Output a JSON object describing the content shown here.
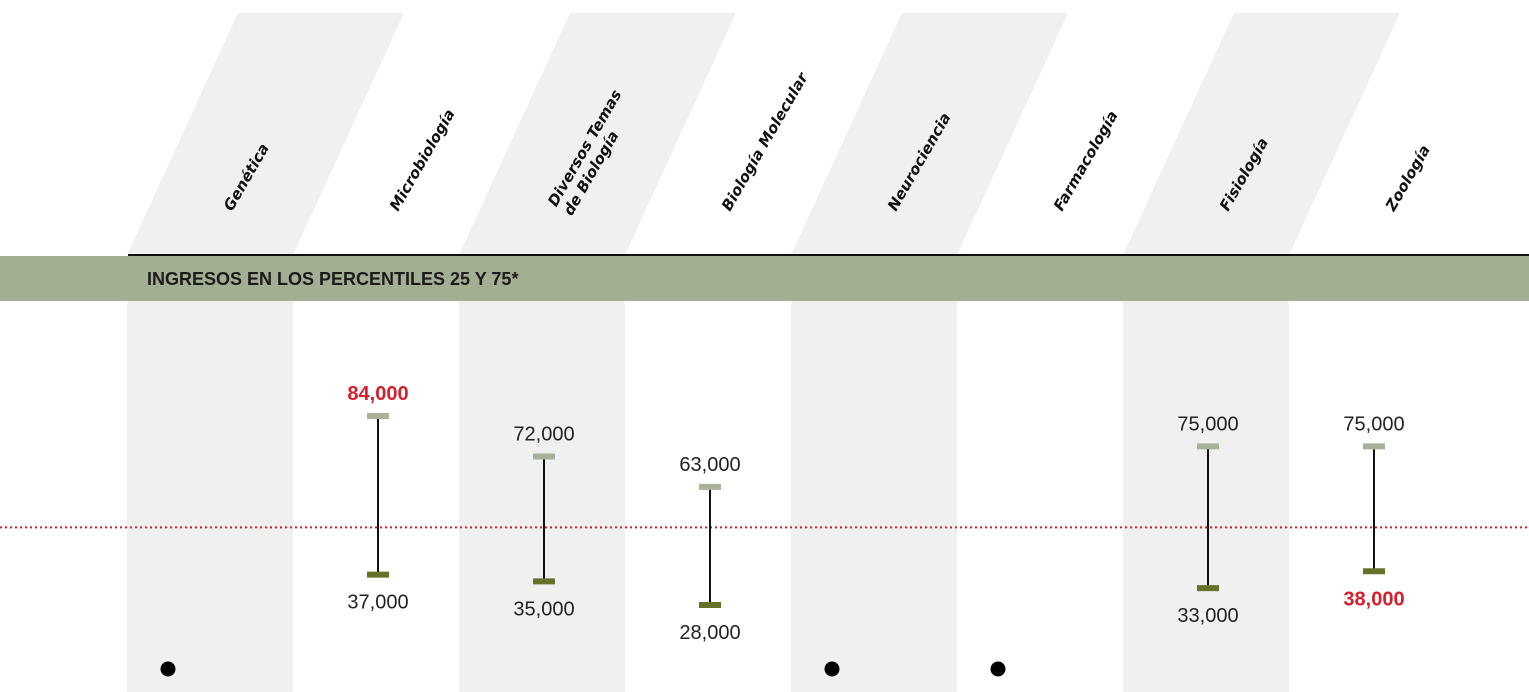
{
  "chart_data": {
    "type": "range",
    "section_title": "INGRESOS EN LOS PERCENTILES 25 Y 75*",
    "categories": [
      "Genética",
      "Microbiología",
      "Diversos Temas de Biología",
      "Biología Molecular",
      "Neurociencia",
      "Farmacología",
      "Fisiología",
      "Zoología"
    ],
    "category_label_lines": [
      [
        "Genética"
      ],
      [
        "Microbiología"
      ],
      [
        "Diversos Temas",
        "de Biología"
      ],
      [
        "Biología Molecular"
      ],
      [
        "Neurociencia"
      ],
      [
        "Farmacología"
      ],
      [
        "Fisiología"
      ],
      [
        "Zoología"
      ]
    ],
    "series": [
      {
        "name": "",
        "values": [
          null,
          84000,
          72000,
          63000,
          null,
          null,
          75000,
          75000
        ]
      },
      {
        "name": "",
        "values": [
          null,
          37000,
          35000,
          28000,
          null,
          null,
          33000,
          38000
        ]
      }
    ],
    "high_labels": [
      "",
      "84,000",
      "72,000",
      "63,000",
      "",
      "",
      "75,000",
      "75,000"
    ],
    "low_labels": [
      "",
      "37,000",
      "35,000",
      "28,000",
      "",
      "",
      "33,000",
      "38,000"
    ],
    "highlight_high": [
      false,
      true,
      false,
      false,
      false,
      false,
      false,
      false
    ],
    "highlight_low": [
      false,
      false,
      false,
      false,
      false,
      false,
      false,
      true
    ],
    "no_data_marker": [
      true,
      false,
      false,
      false,
      true,
      true,
      false,
      false
    ],
    "reference_value": 51000,
    "colors": {
      "band": "#a3af92",
      "column_shade": "#f0f0f0",
      "high_cap": "#a8b298",
      "low_cap": "#66712a",
      "reference_line": "#d41f2c",
      "highlight_text": "#d41f2c"
    }
  }
}
